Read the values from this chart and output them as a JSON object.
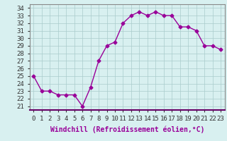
{
  "x": [
    0,
    1,
    2,
    3,
    4,
    5,
    6,
    7,
    8,
    9,
    10,
    11,
    12,
    13,
    14,
    15,
    16,
    17,
    18,
    19,
    20,
    21,
    22,
    23
  ],
  "y": [
    25,
    23,
    23,
    22.5,
    22.5,
    22.5,
    21,
    23.5,
    27,
    29,
    29.5,
    32,
    33,
    33.5,
    33,
    33.5,
    33,
    33,
    31.5,
    31.5,
    31,
    29,
    29,
    28.5
  ],
  "line_color": "#990099",
  "marker": "D",
  "marker_size": 2.5,
  "line_width": 1.0,
  "bg_color": "#d8f0f0",
  "grid_color": "#aacccc",
  "xlabel": "Windchill (Refroidissement éolien,°C)",
  "xlabel_fontsize": 7,
  "ytick_min": 21,
  "ytick_max": 34,
  "xtick_labels": [
    "0",
    "1",
    "2",
    "3",
    "4",
    "5",
    "6",
    "7",
    "8",
    "9",
    "10",
    "11",
    "12",
    "13",
    "14",
    "15",
    "16",
    "17",
    "18",
    "19",
    "20",
    "21",
    "22",
    "23"
  ],
  "tick_fontsize": 6.5,
  "ylim": [
    20.5,
    34.5
  ],
  "xlim": [
    -0.5,
    23.5
  ],
  "spine_color": "#888888",
  "bottom_spine_color": "#660066"
}
